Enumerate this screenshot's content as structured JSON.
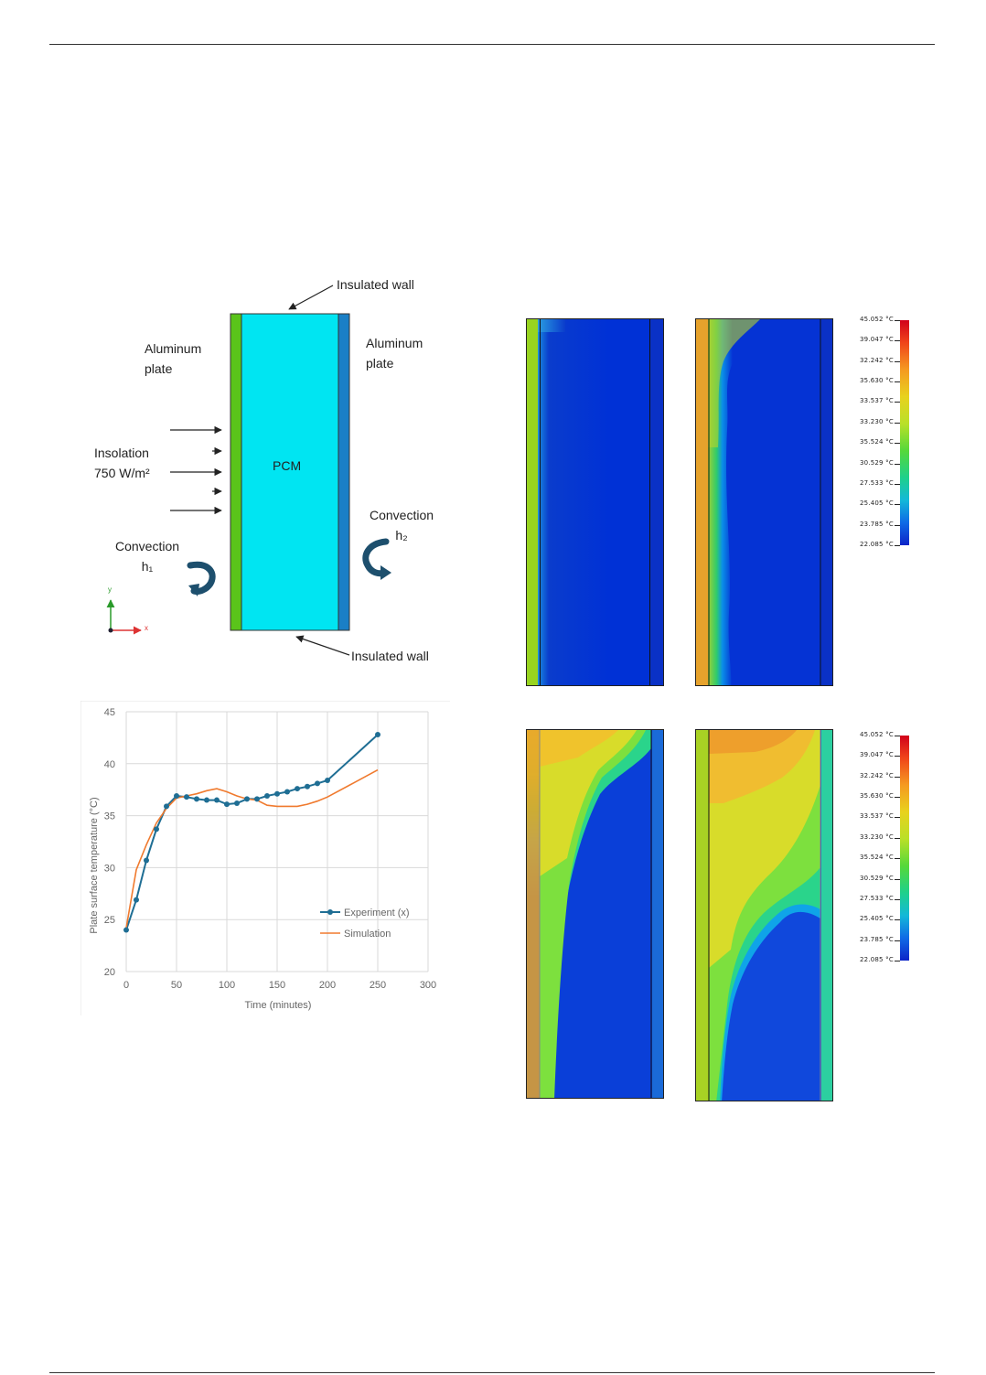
{
  "schematic": {
    "top_wall_label": "Insulated wall",
    "bottom_wall_label": "Insulated wall",
    "left_plate_label": [
      "Aluminum",
      "plate"
    ],
    "right_plate_label": [
      "Aluminum",
      "plate"
    ],
    "insolation_label": [
      "Insolation",
      "750 W/m²"
    ],
    "pcm_label": "PCM",
    "left_convection_label": [
      "Convection",
      "h₁"
    ],
    "right_convection_label": [
      "Convection",
      "h₂"
    ],
    "axis_y": "y",
    "axis_x": "x"
  },
  "colors": {
    "pcm_fill": "#00e5f2",
    "left_plate": "#5ac41a",
    "right_plate": "#1a7fc6",
    "series_experiment": "#1f6e94",
    "series_simulation": "#f07a2e",
    "arrow_dark": "#1d4f6d"
  },
  "chart_data": {
    "type": "line",
    "xlabel": "Time (minutes)",
    "ylabel": "Plate surface temperature (°C)",
    "xlim": [
      0,
      300
    ],
    "ylim": [
      20,
      45
    ],
    "x_ticks": [
      "0",
      "50",
      "100",
      "150",
      "200",
      "250",
      "300"
    ],
    "y_ticks": [
      "20",
      "25",
      "30",
      "35",
      "40",
      "45"
    ],
    "grid": true,
    "legend_position": "bottom-right",
    "series": [
      {
        "name": "Experiment (x)",
        "marker": "circle",
        "x": [
          0,
          10,
          20,
          30,
          40,
          50,
          60,
          70,
          80,
          90,
          100,
          110,
          120,
          130,
          140,
          150,
          160,
          170,
          180,
          190,
          200,
          250
        ],
        "y": [
          24,
          26.9,
          30.7,
          33.7,
          35.9,
          36.9,
          36.8,
          36.6,
          36.5,
          36.5,
          36.1,
          36.2,
          36.6,
          36.6,
          36.9,
          37.1,
          37.3,
          37.6,
          37.8,
          38.1,
          38.4,
          42.8
        ]
      },
      {
        "name": "Simulation",
        "marker": "none",
        "x": [
          0,
          10,
          20,
          30,
          40,
          50,
          60,
          70,
          80,
          90,
          100,
          110,
          120,
          130,
          140,
          150,
          160,
          170,
          180,
          190,
          200,
          225,
          250
        ],
        "y": [
          24.2,
          29.8,
          32.2,
          34.3,
          35.7,
          36.7,
          36.9,
          37.1,
          37.4,
          37.6,
          37.3,
          36.9,
          36.6,
          36.5,
          36,
          35.9,
          35.9,
          35.9,
          36.1,
          36.4,
          36.8,
          38.1,
          39.4
        ]
      }
    ]
  },
  "contour_legend": {
    "values_top": [
      "45.052 °C",
      "39.047 °C",
      "32.242 °C",
      "35.630 °C",
      "33.537 °C",
      "33.230 °C",
      "35.524 °C",
      "30.529 °C",
      "27.533 °C",
      "25.405 °C",
      "23.785 °C",
      "22.085 °C"
    ],
    "values_bottom": [
      "45.052 °C",
      "39.047 °C",
      "32.242 °C",
      "35.630 °C",
      "33.537 °C",
      "33.230 °C",
      "35.524 °C",
      "30.529 °C",
      "27.533 °C",
      "25.405 °C",
      "23.785 °C",
      "22.085 °C"
    ]
  }
}
